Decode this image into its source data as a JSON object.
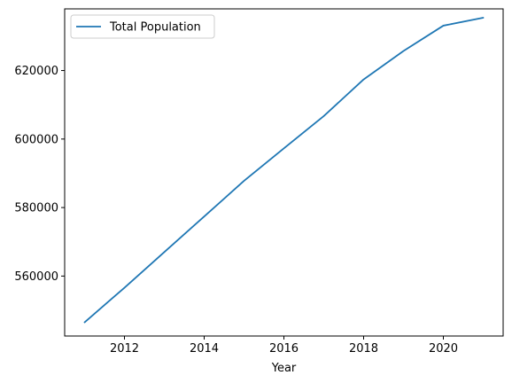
{
  "chart_data": {
    "type": "line",
    "title": "",
    "xlabel": "Year",
    "ylabel": "",
    "xlim": [
      2010.5,
      2021.5
    ],
    "ylim": [
      542500,
      638000
    ],
    "x_ticks": [
      2012,
      2014,
      2016,
      2018,
      2020
    ],
    "y_ticks": [
      560000,
      580000,
      600000,
      620000
    ],
    "grid": false,
    "legend_position": "upper-left",
    "series": [
      {
        "name": "Total Population",
        "color": "#1f77b4",
        "x": [
          2011,
          2012,
          2013,
          2014,
          2015,
          2016,
          2017,
          2018,
          2019,
          2020,
          2021
        ],
        "values": [
          546500,
          556600,
          567000,
          577400,
          587800,
          597300,
          606700,
          617400,
          625700,
          633100,
          635400
        ]
      }
    ]
  }
}
